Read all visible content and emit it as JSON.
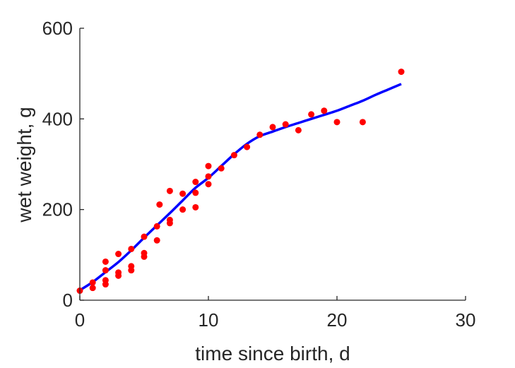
{
  "chart_data": {
    "type": "scatter",
    "xlabel": "time since birth, d",
    "ylabel": "wet weight, g",
    "xlim": [
      0,
      30
    ],
    "ylim": [
      0,
      600
    ],
    "xticks": [
      "0",
      "10",
      "20",
      "30"
    ],
    "yticks": [
      "0",
      "200",
      "400",
      "600"
    ],
    "grid": false,
    "series": [
      {
        "kind": "points",
        "color": "#ff0000",
        "x": [
          0,
          1,
          1,
          2,
          2,
          2,
          2,
          3,
          3,
          3,
          4,
          4,
          4,
          5,
          5,
          5,
          6,
          6,
          6.2,
          7,
          7,
          7,
          8,
          8,
          9,
          9,
          9,
          10,
          10,
          10,
          11,
          12,
          13,
          14,
          15,
          16,
          17,
          18,
          19,
          20,
          22,
          25
        ],
        "y": [
          21,
          27,
          39,
          35,
          44,
          66,
          85,
          54,
          61,
          102,
          66,
          75,
          113,
          96,
          104,
          140,
          132,
          163,
          211,
          170,
          177,
          241,
          200,
          235,
          205,
          237,
          261,
          256,
          273,
          296,
          291,
          320,
          338,
          365,
          382,
          388,
          375,
          410,
          418,
          393,
          393,
          504
        ]
      },
      {
        "kind": "line",
        "color": "#0000ff",
        "x": [
          0,
          1,
          2,
          3,
          4,
          5,
          6,
          7,
          8,
          9,
          10,
          11,
          12,
          13,
          14,
          15,
          16,
          17,
          18,
          19,
          20,
          21,
          22,
          23,
          24,
          25
        ],
        "y": [
          22,
          40,
          62,
          84,
          110,
          138,
          165,
          192,
          220,
          248,
          270,
          296,
          322,
          345,
          362,
          372,
          382,
          391,
          400,
          409,
          418,
          429,
          440,
          453,
          465,
          477
        ]
      }
    ]
  }
}
